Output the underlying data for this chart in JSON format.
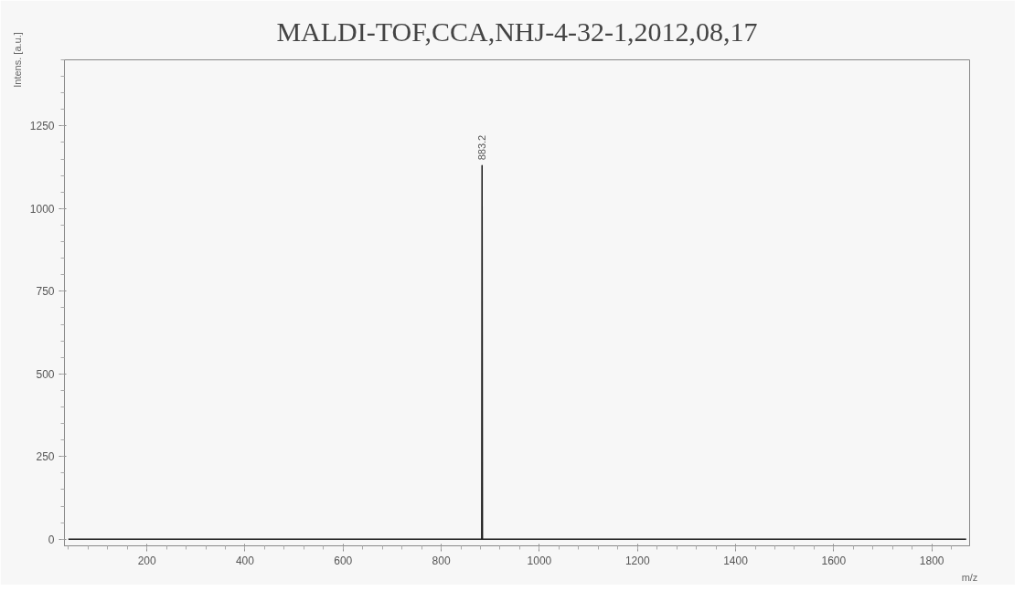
{
  "chart_data": {
    "type": "line",
    "title": "MALDI-TOF,CCA,NHJ-4-32-1,2012,08,17",
    "xlabel": "m/z",
    "ylabel": "Intens. [a.u.]",
    "series": [
      {
        "color": "#1a1a1a",
        "x": [
          40,
          880,
          882.5,
          883.2,
          884,
          886,
          1870
        ],
        "values": [
          0,
          0,
          0,
          1130,
          0,
          0,
          0
        ]
      }
    ],
    "annotations": [
      {
        "text": "883.2",
        "x": 883.2,
        "y": 1130
      }
    ],
    "xlim": [
      32,
      1877
    ],
    "xticks": [
      200,
      400,
      600,
      800,
      1000,
      1200,
      1400,
      1600,
      1800
    ],
    "ylim": [
      -20,
      1450
    ],
    "yticks": [
      0,
      250,
      500,
      750,
      1000,
      1250
    ],
    "grid": false,
    "marker": "none",
    "line_style": "solid"
  }
}
